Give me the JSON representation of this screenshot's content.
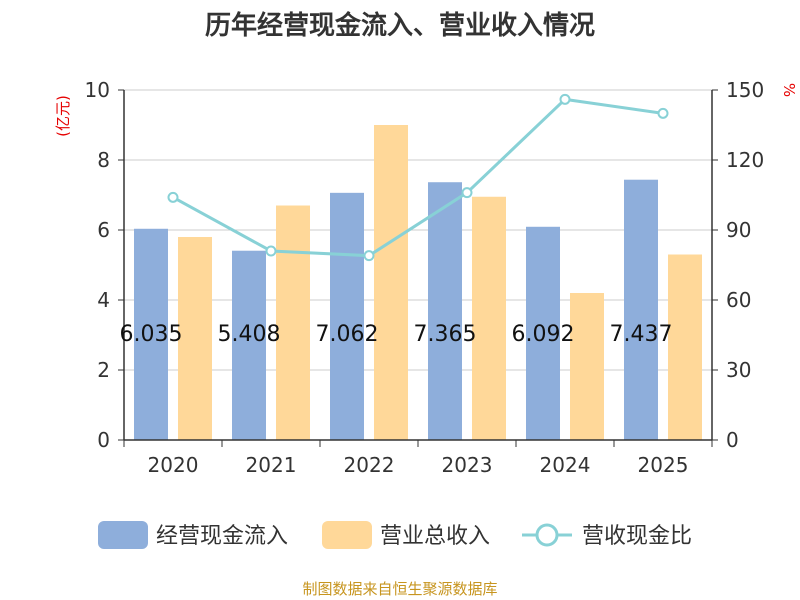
{
  "chart_data": {
    "type": "bar",
    "title": "历年经营现金流入、营业收入情况",
    "left_axis_unit": "(亿元)",
    "right_axis_unit": "%",
    "categories": [
      "2020",
      "2021",
      "2022",
      "2023",
      "2024",
      "2025"
    ],
    "ylim_left": [
      0,
      10
    ],
    "left_ticks": [
      0,
      2,
      4,
      6,
      8,
      10
    ],
    "ylim_right": [
      0,
      150
    ],
    "right_ticks": [
      0,
      30,
      60,
      90,
      120,
      150
    ],
    "grid": true,
    "legend_position": "bottom",
    "series": [
      {
        "name": "经营现金流入",
        "kind": "bar",
        "axis": "left",
        "color": "#8eaedb",
        "values": [
          6.035,
          5.408,
          7.062,
          7.365,
          6.092,
          7.437
        ],
        "labels": [
          "6.035",
          "5.408",
          "7.062",
          "7.365",
          "6.092",
          "7.437"
        ]
      },
      {
        "name": "营业总收入",
        "kind": "bar",
        "axis": "left",
        "color": "#ffd899",
        "values": [
          5.8,
          6.7,
          9.0,
          6.95,
          4.2,
          5.3
        ]
      },
      {
        "name": "营收现金比",
        "kind": "line",
        "axis": "right",
        "color": "#88d1d6",
        "values": [
          104,
          81,
          79,
          106,
          146,
          140
        ]
      }
    ],
    "source": "制图数据来自恒生聚源数据库"
  }
}
